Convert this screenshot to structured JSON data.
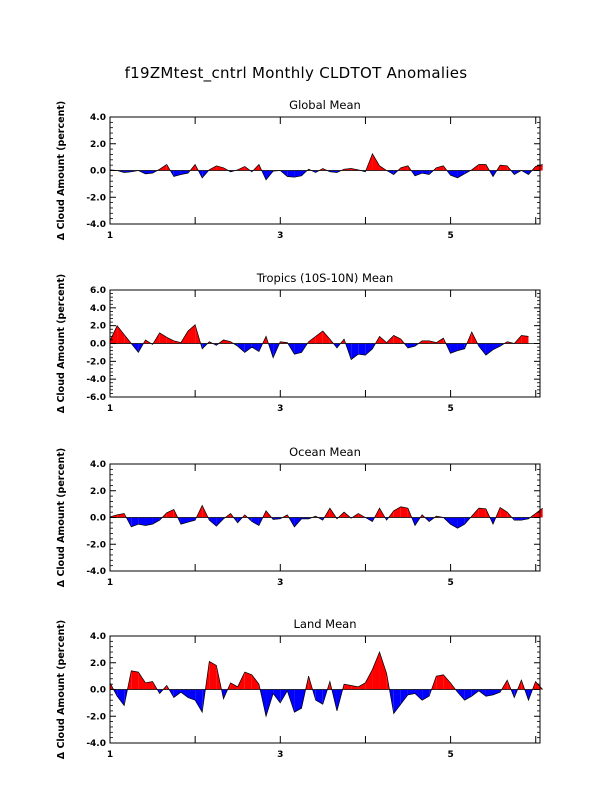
{
  "main_title": "f19ZMtest_cntrl Monthly CLDTOT Anomalies",
  "colors": {
    "positive": "#ff0000",
    "negative": "#0000ff",
    "axis": "#000000",
    "background": "#ffffff"
  },
  "chart_data": [
    {
      "type": "area",
      "title": "Global Mean",
      "ylabel": "Δ Cloud Amount (percent)",
      "xlabel": "",
      "xlim": [
        1,
        6.05
      ],
      "ylim": [
        -4,
        4
      ],
      "x_ticks": [
        "1",
        "3",
        "5"
      ],
      "y_ticks": [
        "4.0",
        "2.0",
        "0.0",
        "-2.0",
        "-4.0"
      ],
      "x_start": 1,
      "x_step": 0.0833,
      "values": [
        0.05,
        0,
        -0.15,
        -0.1,
        0,
        -0.25,
        -0.2,
        0.1,
        0.45,
        -0.45,
        -0.3,
        -0.2,
        0.45,
        -0.55,
        0.05,
        0.35,
        0.2,
        -0.1,
        0.05,
        0.3,
        -0.1,
        0.45,
        -0.7,
        -0.05,
        0,
        -0.45,
        -0.5,
        -0.4,
        0.1,
        -0.15,
        0.15,
        -0.1,
        -0.15,
        0.1,
        0.15,
        0.05,
        -0.1,
        1.25,
        0.35,
        0,
        -0.3,
        0.2,
        0.35,
        -0.4,
        -0.2,
        -0.3,
        0.2,
        0.35,
        -0.35,
        -0.55,
        -0.25,
        0.05,
        0.45,
        0.45,
        -0.45,
        0.4,
        0.35,
        -0.3,
        0,
        -0.3,
        0.3,
        0.45
      ]
    },
    {
      "type": "area",
      "title": "Tropics (10S-10N) Mean",
      "ylabel": "Δ Cloud Amount (percent)",
      "xlabel": "",
      "xlim": [
        1,
        6.05
      ],
      "ylim": [
        -6,
        6
      ],
      "x_ticks": [
        "1",
        "3",
        "5"
      ],
      "y_ticks": [
        "6.0",
        "4.0",
        "2.0",
        "0.0",
        "-2.0",
        "-4.0",
        "-6.0"
      ],
      "x_start": 1,
      "x_step": 0.0833,
      "values": [
        0.3,
        2,
        1,
        0,
        -1,
        0.4,
        -0.1,
        1.2,
        0.7,
        0.3,
        0.1,
        1.4,
        2.1,
        -0.6,
        0.2,
        -0.2,
        0.4,
        0.2,
        -0.3,
        -1,
        -0.4,
        -0.9,
        0.8,
        -1.6,
        0.2,
        0.1,
        -1.2,
        -1,
        0.2,
        0.8,
        1.4,
        0.5,
        -0.5,
        0.5,
        -1.8,
        -1.2,
        -1.3,
        -0.6,
        0.8,
        0.1,
        0.9,
        0.5,
        -0.5,
        -0.3,
        0.3,
        0.3,
        0.1,
        0.6,
        -1.1,
        -0.8,
        -0.6,
        1.3,
        -0.3,
        -1.3,
        -0.7,
        -0.3,
        0.2,
        0,
        0.9,
        0.8
      ]
    },
    {
      "type": "area",
      "title": "Ocean Mean",
      "ylabel": "Δ Cloud Amount (percent)",
      "xlabel": "",
      "xlim": [
        1,
        6.05
      ],
      "ylim": [
        -4,
        4
      ],
      "x_ticks": [
        "1",
        "3",
        "5"
      ],
      "y_ticks": [
        "4.0",
        "2.0",
        "0.0",
        "-2.0",
        "-4.0"
      ],
      "x_start": 1,
      "x_step": 0.0833,
      "values": [
        0.05,
        0.2,
        0.3,
        -0.7,
        -0.5,
        -0.6,
        -0.5,
        -0.2,
        0.35,
        0.6,
        -0.5,
        -0.35,
        -0.2,
        0.9,
        -0.2,
        -0.65,
        -0.1,
        0.3,
        -0.4,
        0.2,
        -0.3,
        -0.6,
        0.5,
        -0.15,
        -0.1,
        0.2,
        -0.7,
        -0.1,
        -0.1,
        0.1,
        -0.2,
        0.7,
        -0.1,
        0.4,
        -0.05,
        0.3,
        0,
        -0.3,
        0.7,
        -0.2,
        0.5,
        0.8,
        0.7,
        -0.6,
        0.2,
        -0.3,
        0.1,
        0,
        -0.5,
        -0.8,
        -0.5,
        0.1,
        0.7,
        0.65,
        -0.5,
        0.75,
        0.4,
        -0.2,
        -0.2,
        -0.1,
        0.3,
        0.7
      ]
    },
    {
      "type": "area",
      "title": "Land Mean",
      "ylabel": "Δ Cloud Amount (percent)",
      "xlabel": "",
      "xlim": [
        1,
        6.05
      ],
      "ylim": [
        -4,
        4
      ],
      "x_ticks": [
        "1",
        "3",
        "5"
      ],
      "y_ticks": [
        "4.0",
        "2.0",
        "0.0",
        "-2.0",
        "-4.0"
      ],
      "x_start": 1,
      "x_step": 0.0833,
      "values": [
        0.5,
        -0.5,
        -1.2,
        1.4,
        1.3,
        0.5,
        0.6,
        -0.3,
        0.3,
        -0.6,
        -0.2,
        -0.6,
        -0.8,
        -1.7,
        2.1,
        1.8,
        -0.7,
        0.5,
        0.2,
        1.3,
        1.1,
        0.4,
        -2,
        -0.3,
        -1,
        -0.1,
        -1.7,
        -1.4,
        1,
        -0.8,
        -1.1,
        0.6,
        -1.6,
        0.4,
        0.3,
        0.2,
        0.5,
        1.5,
        2.8,
        1.2,
        -1.8,
        -1.1,
        -0.4,
        -0.3,
        -0.8,
        -0.5,
        1,
        1.1,
        0.5,
        -0.2,
        -0.8,
        -0.5,
        -0.1,
        -0.5,
        -0.4,
        -0.2,
        0.7,
        -0.6,
        0.7,
        -0.8,
        0.6,
        0
      ]
    }
  ]
}
